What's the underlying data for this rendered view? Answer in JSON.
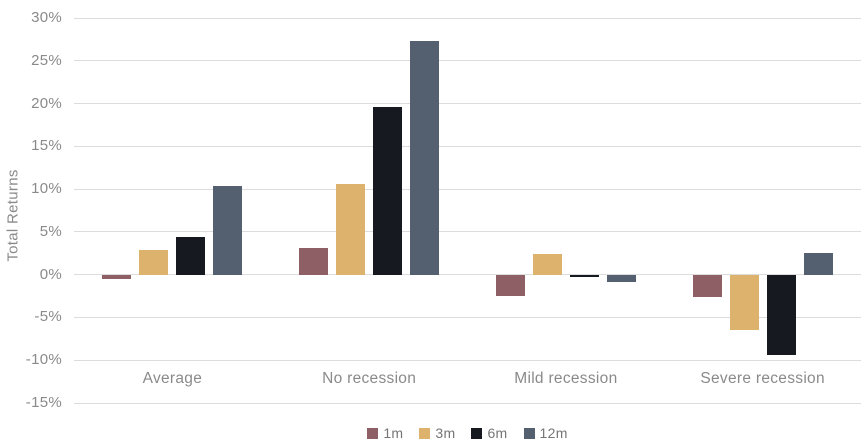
{
  "chart_data": {
    "type": "bar",
    "title": "",
    "xlabel": "",
    "ylabel": "Total Returns",
    "categories": [
      "Average",
      "No recession",
      "Mild recession",
      "Severe recession"
    ],
    "series": [
      {
        "name": "1m",
        "color": "#8e5f64",
        "values": [
          -0.5,
          3.1,
          -2.5,
          -2.6
        ]
      },
      {
        "name": "3m",
        "color": "#dcb26c",
        "values": [
          2.9,
          10.6,
          2.4,
          -6.5
        ]
      },
      {
        "name": "6m",
        "color": "#16191f",
        "values": [
          4.4,
          19.6,
          -0.3,
          -9.4
        ]
      },
      {
        "name": "12m",
        "color": "#546070",
        "values": [
          10.4,
          27.3,
          -0.8,
          2.5
        ]
      }
    ],
    "ylim": [
      -15,
      30
    ],
    "yticks": [
      30,
      25,
      20,
      15,
      10,
      5,
      0,
      -5,
      -10,
      -15
    ],
    "ytick_suffix": "%",
    "grid": "horizontal",
    "legend_position": "bottom",
    "colors": {
      "gridline": "#dcdcdc",
      "axis_text": "#8a8a8a",
      "legend_text": "#757575",
      "background": "#ffffff"
    }
  }
}
